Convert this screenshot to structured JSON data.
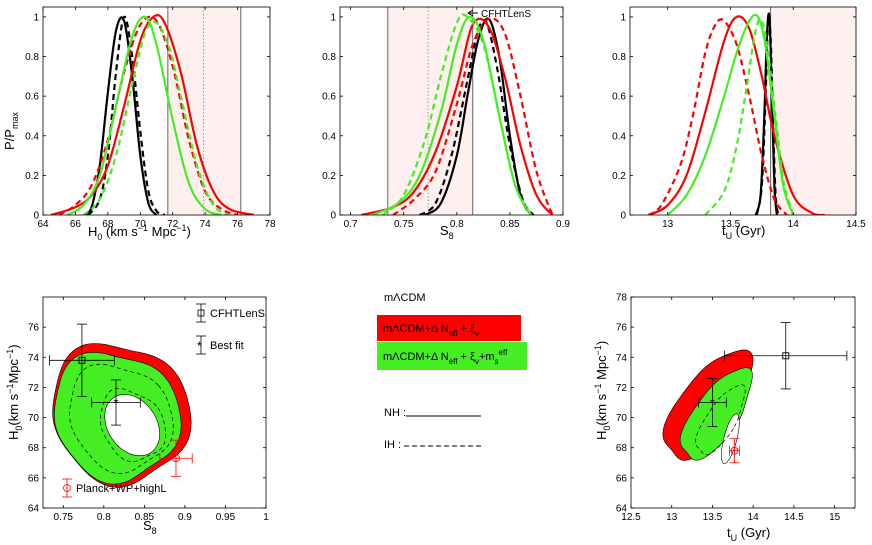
{
  "colors": {
    "red": "#ff0000",
    "green": "#44ee22",
    "black": "#000000",
    "planck": "#ff0000",
    "band": "#fdf0ee"
  },
  "chart_data": [
    {
      "type": "line",
      "id": "h0",
      "xlim": [
        64,
        78
      ],
      "ylim": [
        0,
        1.05
      ],
      "xticks": [
        "64",
        "66",
        "68",
        "70",
        "72",
        "74",
        "76",
        "78"
      ],
      "yticks": [
        "0",
        "0.2",
        "0.4",
        "0.6",
        "0.8",
        "1"
      ],
      "xlabel": "H_0 (km s^-1 Mpc^-1)",
      "ylabel": "P/P_max",
      "band": [
        71.7,
        76.2
      ],
      "band_center": 73.9,
      "curves": [
        {
          "name": "black-solid",
          "color": "black",
          "dash": false,
          "x": [
            66.5,
            67.0,
            67.5,
            68.0,
            68.5,
            69.0,
            69.5,
            70.0,
            70.5,
            71.0
          ],
          "y": [
            0.0,
            0.04,
            0.25,
            0.62,
            0.93,
            0.98,
            0.7,
            0.3,
            0.06,
            0.0
          ]
        },
        {
          "name": "black-dashed",
          "color": "black",
          "dash": true,
          "x": [
            66.8,
            67.5,
            68.0,
            68.5,
            69.0,
            69.5,
            70.0,
            70.5,
            71.0,
            71.5
          ],
          "y": [
            0.0,
            0.08,
            0.3,
            0.72,
            1.0,
            0.8,
            0.42,
            0.12,
            0.02,
            0.0
          ]
        },
        {
          "name": "red-solid",
          "color": "red",
          "dash": false,
          "x": [
            64.5,
            66.0,
            67.0,
            68.0,
            69.0,
            70.0,
            70.8,
            71.5,
            72.5,
            73.5,
            74.5,
            75.5,
            77.0
          ],
          "y": [
            0.0,
            0.04,
            0.1,
            0.25,
            0.55,
            0.88,
            1.0,
            0.97,
            0.72,
            0.35,
            0.12,
            0.03,
            0.0
          ]
        },
        {
          "name": "red-dashed",
          "color": "red",
          "dash": true,
          "x": [
            65.0,
            66.0,
            67.0,
            68.0,
            69.0,
            70.0,
            71.0,
            72.0,
            73.0,
            74.0,
            75.0,
            76.0
          ],
          "y": [
            0.0,
            0.05,
            0.15,
            0.38,
            0.72,
            0.96,
            0.98,
            0.75,
            0.38,
            0.12,
            0.03,
            0.0
          ]
        },
        {
          "name": "green-solid",
          "color": "green",
          "dash": false,
          "x": [
            65.5,
            66.5,
            67.5,
            68.5,
            69.5,
            70.3,
            71.0,
            72.0,
            73.0,
            74.0,
            75.0
          ],
          "y": [
            0.0,
            0.05,
            0.2,
            0.55,
            0.9,
            1.0,
            0.86,
            0.48,
            0.16,
            0.03,
            0.0
          ]
        },
        {
          "name": "green-dashed",
          "color": "green",
          "dash": true,
          "x": [
            66.5,
            67.5,
            68.5,
            69.5,
            70.3,
            71.0,
            71.8,
            72.5,
            73.5,
            74.5,
            75.5
          ],
          "y": [
            0.0,
            0.08,
            0.3,
            0.66,
            0.92,
            0.97,
            0.84,
            0.6,
            0.25,
            0.05,
            0.0
          ]
        }
      ]
    },
    {
      "type": "line",
      "id": "s8",
      "xlim": [
        0.69,
        0.9
      ],
      "ylim": [
        0,
        1.05
      ],
      "xticks": [
        "0.7",
        "0.75",
        "0.8",
        "0.85",
        "0.9"
      ],
      "yticks": [
        "0",
        "0.2",
        "0.4",
        "0.6",
        "0.8",
        "1"
      ],
      "xlabel": "S_8",
      "ylabel": "",
      "band": [
        0.735,
        0.815
      ],
      "band_center": 0.773,
      "annotation": "CFHTLenS",
      "curves": [
        {
          "name": "black-solid",
          "color": "black",
          "dash": false,
          "x": [
            0.77,
            0.785,
            0.8,
            0.81,
            0.82,
            0.83,
            0.84,
            0.85,
            0.86,
            0.87
          ],
          "y": [
            0.0,
            0.06,
            0.3,
            0.6,
            0.88,
            0.99,
            0.8,
            0.4,
            0.1,
            0.0
          ]
        },
        {
          "name": "black-dashed",
          "color": "black",
          "dash": true,
          "x": [
            0.765,
            0.78,
            0.795,
            0.81,
            0.82,
            0.828,
            0.838,
            0.85,
            0.862,
            0.872
          ],
          "y": [
            0.0,
            0.06,
            0.3,
            0.68,
            0.93,
            0.97,
            0.74,
            0.35,
            0.08,
            0.0
          ]
        },
        {
          "name": "red-solid",
          "color": "red",
          "dash": false,
          "x": [
            0.71,
            0.74,
            0.76,
            0.78,
            0.8,
            0.815,
            0.83,
            0.845,
            0.86,
            0.875,
            0.89
          ],
          "y": [
            0.0,
            0.04,
            0.12,
            0.32,
            0.65,
            0.96,
            0.95,
            0.7,
            0.35,
            0.1,
            0.0
          ]
        },
        {
          "name": "red-dashed",
          "color": "red",
          "dash": true,
          "x": [
            0.74,
            0.76,
            0.78,
            0.8,
            0.815,
            0.83,
            0.845,
            0.86,
            0.875,
            0.89
          ],
          "y": [
            0.0,
            0.08,
            0.22,
            0.56,
            0.86,
            0.99,
            0.92,
            0.6,
            0.22,
            0.0
          ]
        },
        {
          "name": "green-solid",
          "color": "green",
          "dash": false,
          "x": [
            0.72,
            0.745,
            0.765,
            0.785,
            0.8,
            0.812,
            0.825,
            0.84,
            0.855,
            0.87
          ],
          "y": [
            0.0,
            0.06,
            0.2,
            0.52,
            0.86,
            1.0,
            0.88,
            0.5,
            0.15,
            0.0
          ]
        },
        {
          "name": "green-dashed",
          "color": "green",
          "dash": true,
          "x": [
            0.73,
            0.75,
            0.77,
            0.785,
            0.8,
            0.81,
            0.825,
            0.84,
            0.855,
            0.87
          ],
          "y": [
            0.0,
            0.1,
            0.38,
            0.7,
            0.97,
            1.0,
            0.86,
            0.5,
            0.15,
            0.0
          ]
        }
      ]
    },
    {
      "type": "line",
      "id": "tu",
      "xlim": [
        12.7,
        14.5
      ],
      "ylim": [
        0,
        1.05
      ],
      "xticks": [
        "13",
        "13.5",
        "14",
        "14.5"
      ],
      "yticks": [
        "0",
        "0.2",
        "0.4",
        "0.6",
        "0.8",
        "1"
      ],
      "xlabel": "t_U (Gyr)",
      "ylabel": "",
      "band": [
        13.82,
        14.5
      ],
      "band_center": null,
      "curves": [
        {
          "name": "black-solid",
          "color": "black",
          "dash": false,
          "x": [
            13.7,
            13.74,
            13.77,
            13.79,
            13.81,
            13.83,
            13.85,
            13.87
          ],
          "y": [
            0.0,
            0.1,
            0.5,
            0.9,
            1.0,
            0.6,
            0.15,
            0.0
          ]
        },
        {
          "name": "black-dashed",
          "color": "black",
          "dash": true,
          "x": [
            13.71,
            13.75,
            13.78,
            13.8,
            13.82,
            13.84,
            13.86,
            13.88
          ],
          "y": [
            0.0,
            0.15,
            0.6,
            0.98,
            0.9,
            0.45,
            0.1,
            0.0
          ]
        },
        {
          "name": "red-solid",
          "color": "red",
          "dash": false,
          "x": [
            12.85,
            13.0,
            13.15,
            13.3,
            13.45,
            13.55,
            13.65,
            13.75,
            13.85,
            14.0,
            14.15,
            14.25
          ],
          "y": [
            0.0,
            0.05,
            0.2,
            0.52,
            0.88,
            1.0,
            0.94,
            0.7,
            0.4,
            0.1,
            0.01,
            0.0
          ]
        },
        {
          "name": "red-dashed",
          "color": "red",
          "dash": true,
          "x": [
            12.85,
            12.95,
            13.1,
            13.2,
            13.3,
            13.38,
            13.45,
            13.55,
            13.65,
            13.75,
            13.85,
            13.95
          ],
          "y": [
            0.0,
            0.05,
            0.25,
            0.5,
            0.82,
            0.96,
            0.98,
            0.86,
            0.6,
            0.3,
            0.08,
            0.0
          ]
        },
        {
          "name": "green-solid",
          "color": "green",
          "dash": false,
          "x": [
            13.0,
            13.15,
            13.3,
            13.45,
            13.55,
            13.65,
            13.72,
            13.78,
            13.85,
            13.92,
            14.0
          ],
          "y": [
            0.0,
            0.1,
            0.3,
            0.6,
            0.82,
            0.98,
            1.0,
            0.85,
            0.5,
            0.15,
            0.0
          ]
        },
        {
          "name": "green-dashed",
          "color": "green",
          "dash": true,
          "x": [
            13.3,
            13.45,
            13.55,
            13.63,
            13.7,
            13.75,
            13.8,
            13.86,
            13.92,
            14.0
          ],
          "y": [
            0.0,
            0.12,
            0.35,
            0.65,
            0.93,
            0.98,
            0.82,
            0.5,
            0.18,
            0.0
          ]
        }
      ]
    },
    {
      "type": "contour",
      "id": "h0s8",
      "xlim": [
        0.725,
        1.0
      ],
      "ylim": [
        64,
        78
      ],
      "xticks": [
        "0.75",
        "0.8",
        "0.85",
        "0.9",
        "0.95",
        "1"
      ],
      "yticks": [
        "64",
        "66",
        "68",
        "70",
        "72",
        "74",
        "76"
      ],
      "xlabel": "S_8",
      "ylabel": "H_0(km s^-1Mpc^-1)",
      "regions": [
        {
          "name": "red-95",
          "color": "red",
          "cx": 0.82,
          "cy": 70.3,
          "rx": 0.082,
          "ry": 4.8,
          "rot": -0.72
        },
        {
          "name": "green-95",
          "color": "green",
          "cx": 0.815,
          "cy": 70.1,
          "rx": 0.075,
          "ry": 4.4,
          "rot": -0.72
        },
        {
          "name": "white-68",
          "color": "white",
          "cx": 0.835,
          "cy": 69.5,
          "rx": 0.03,
          "ry": 2.2,
          "rot": -0.6
        }
      ],
      "dashed_contours": [
        {
          "cx": 0.82,
          "cy": 70.0,
          "rx": 0.06,
          "ry": 3.7,
          "rot": -0.7
        },
        {
          "cx": 0.835,
          "cy": 69.5,
          "rx": 0.037,
          "ry": 2.5,
          "rot": -0.6
        }
      ],
      "points": [
        {
          "name": "CFHTLenS",
          "marker": "square",
          "color": "black",
          "x": 0.773,
          "y": 73.8,
          "xerr": 0.04,
          "yerr": 2.4
        },
        {
          "name": "Best fit",
          "marker": "star",
          "color": "black",
          "x": 0.815,
          "y": 71.0,
          "xerr": 0.03,
          "yerr": 1.5
        },
        {
          "name": "Planck+WP+highL",
          "marker": "circle",
          "color": "red",
          "x": 0.889,
          "y": 67.3,
          "xerr": 0.02,
          "yerr": 1.2
        }
      ],
      "legend": [
        "CFHTLenS",
        "Best fit",
        "Planck+WP+highL"
      ]
    },
    {
      "type": "contour",
      "id": "h0tu",
      "xlim": [
        12.5,
        15.25
      ],
      "ylim": [
        64,
        78
      ],
      "xticks": [
        "12.5",
        "13",
        "13.5",
        "14",
        "14.5",
        "15"
      ],
      "yticks": [
        "64",
        "66",
        "68",
        "70",
        "72",
        "74",
        "76",
        "78"
      ],
      "xlabel": "t_U (Gyr)",
      "ylabel": "H_0(km s^-1 Mpc^-1)",
      "regions": [
        {
          "name": "red-95",
          "color": "red",
          "cx": 13.45,
          "cy": 70.8,
          "rx": 0.35,
          "ry": 4.2,
          "rot": 0.62
        },
        {
          "name": "green-95",
          "color": "green",
          "cx": 13.55,
          "cy": 70.2,
          "rx": 0.27,
          "ry": 3.5,
          "rot": 0.6
        },
        {
          "name": "white-68",
          "color": "white",
          "cx": 13.72,
          "cy": 68.6,
          "rx": 0.08,
          "ry": 1.7,
          "rot": 0.25
        }
      ],
      "dashed_contours": [
        {
          "cx": 13.6,
          "cy": 69.8,
          "rx": 0.18,
          "ry": 2.6,
          "rot": 0.55
        }
      ],
      "points": [
        {
          "name": "ref",
          "marker": "square",
          "color": "black",
          "x": 14.4,
          "y": 74.1,
          "xerr": 0.75,
          "yerr": 2.2
        },
        {
          "name": "best",
          "marker": "star",
          "color": "black",
          "x": 13.5,
          "y": 71.0,
          "xerr": 0.17,
          "yerr": 1.6
        },
        {
          "name": "planck",
          "marker": "circle",
          "color": "red",
          "x": 13.77,
          "y": 67.8,
          "xerr": 0.06,
          "yerr": 0.8
        }
      ]
    }
  ],
  "legend_panel": {
    "model_base": "mΛCDM",
    "model_red": "mΛCDM+Δ N_eff + ξ_ν",
    "model_green": "mΛCDM+Δ N_eff + ξ_ν+m_s^eff",
    "nh_label": "NH :",
    "ih_label": "IH :"
  }
}
